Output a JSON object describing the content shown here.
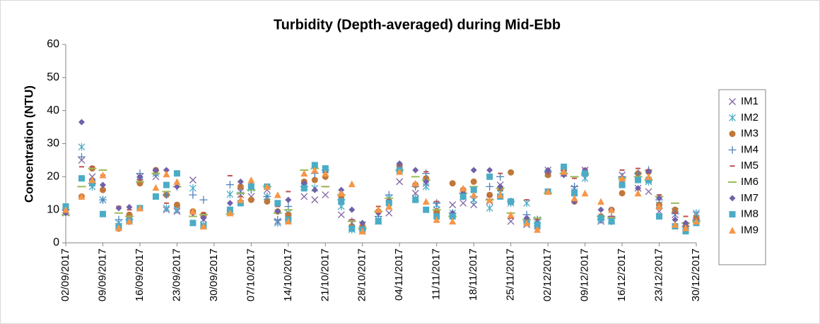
{
  "chart_data": {
    "type": "scatter",
    "title": "Turbidity (Depth-averaged) during Mid-Ebb",
    "y_label": "Concentration (NTU)",
    "x": [
      "02/09/2017",
      "05/09/2017",
      "07/09/2017",
      "09/09/2017",
      "12/09/2017",
      "14/09/2017",
      "16/09/2017",
      "19/09/2017",
      "21/09/2017",
      "23/09/2017",
      "26/09/2017",
      "28/09/2017",
      "03/10/2017",
      "05/10/2017",
      "07/10/2017",
      "10/10/2017",
      "12/10/2017",
      "14/10/2017",
      "17/10/2017",
      "19/10/2017",
      "21/10/2017",
      "24/10/2017",
      "26/10/2017",
      "28/10/2017",
      "31/10/2017",
      "02/11/2017",
      "04/11/2017",
      "07/11/2017",
      "09/11/2017",
      "11/11/2017",
      "14/11/2017",
      "16/11/2017",
      "18/11/2017",
      "21/11/2017",
      "23/11/2017",
      "25/11/2017",
      "28/11/2017",
      "30/11/2017",
      "02/12/2017",
      "05/12/2017",
      "07/12/2017",
      "09/12/2017",
      "12/12/2017",
      "14/12/2017",
      "16/12/2017",
      "19/12/2017",
      "21/12/2017",
      "23/12/2017",
      "26/12/2017",
      "28/12/2017",
      "30/12/2017"
    ],
    "xlim": [
      "02/09/2017",
      "30/12/2017"
    ],
    "xticks": [
      "02/09/2017",
      "09/09/2017",
      "16/09/2017",
      "23/09/2017",
      "30/09/2017",
      "07/10/2017",
      "14/10/2017",
      "21/10/2017",
      "28/10/2017",
      "04/11/2017",
      "11/11/2017",
      "18/11/2017",
      "25/11/2017",
      "02/12/2017",
      "09/12/2017",
      "16/12/2017",
      "23/12/2017",
      "30/12/2017"
    ],
    "ylim": [
      0,
      60
    ],
    "yticks": [
      0,
      10,
      20,
      30,
      40,
      50,
      60
    ],
    "grid": false,
    "legend": "right",
    "series": [
      {
        "name": "IM1",
        "color": "#8064a2",
        "marker": "x",
        "values": [
          9,
          25,
          20,
          13,
          5,
          7,
          20,
          20,
          10,
          9.5,
          19,
          7,
          9,
          15.5,
          14,
          16,
          6.5,
          8,
          14,
          13,
          14.5,
          8.5,
          6,
          3.5,
          6.5,
          9,
          18.5,
          15,
          18,
          10,
          11.5,
          12,
          11.5,
          12.5,
          17.5,
          6.5,
          5.5,
          5,
          22,
          21,
          16.5,
          22,
          6.5,
          7,
          20.5,
          16.5,
          15.5,
          9.5,
          8.5,
          5,
          8.5
        ]
      },
      {
        "name": "IM2",
        "color": "#4bacc6",
        "marker": "star",
        "values": [
          10,
          29,
          17,
          13,
          6,
          6.5,
          19,
          21,
          10.5,
          10,
          16.5,
          5.5,
          14.7,
          14.5,
          16.5,
          14,
          6,
          9,
          17,
          16.5,
          22,
          11,
          4,
          5.5,
          7,
          13.5,
          22.5,
          13.5,
          17,
          11.5,
          9,
          14,
          13,
          10.5,
          15,
          12,
          12,
          7,
          21,
          22,
          15.5,
          19.5,
          7,
          6.5,
          18,
          20,
          18.5,
          11.5,
          9.5,
          4,
          9
        ]
      },
      {
        "name": "IM3",
        "color": "#c0773a",
        "marker": "circle",
        "values": [
          10.5,
          14,
          22.5,
          16,
          4.3,
          8.5,
          18,
          22,
          14.5,
          11.5,
          9.5,
          8.5,
          9.5,
          17,
          13,
          12.5,
          9.5,
          8.5,
          18.5,
          19,
          20,
          14,
          5,
          5,
          9.5,
          12.5,
          23.5,
          17.5,
          19.5,
          9.5,
          18,
          16,
          18.5,
          14.5,
          16.5,
          21.3,
          7,
          5,
          20.5,
          22.5,
          12.5,
          21,
          8,
          10,
          15,
          21,
          21.5,
          11.5,
          10,
          5,
          7.5
        ]
      },
      {
        "name": "IM4",
        "color": "#4f81bd",
        "marker": "plus",
        "values": [
          10,
          26,
          18,
          13,
          7,
          7,
          21,
          21,
          14.5,
          17,
          14.5,
          13,
          17.6,
          15,
          16,
          14,
          7,
          11,
          17,
          21,
          22,
          13,
          6.5,
          4,
          8,
          14.5,
          22,
          17,
          21,
          12,
          9,
          15,
          14,
          17,
          20,
          12.5,
          8.5,
          7,
          21.5,
          21,
          17,
          20.5,
          7,
          8,
          20,
          21,
          22,
          13,
          9,
          5,
          7
        ]
      },
      {
        "name": "IM5",
        "color": "#c0504d",
        "marker": "dash",
        "values": [
          9,
          23,
          23,
          20.5,
          11,
          10,
          19,
          22,
          12,
          18,
          9,
          9,
          20.3,
          14,
          18.5,
          17.5,
          11,
          15.5,
          20.5,
          23,
          17,
          15,
          7,
          6,
          11,
          13,
          23,
          18,
          21.5,
          12.5,
          8.5,
          16,
          16,
          14,
          21,
          7.5,
          13,
          7,
          21,
          22,
          19.5,
          22.5,
          7.5,
          8,
          22,
          22.5,
          22,
          14.5,
          9,
          8,
          7
        ]
      },
      {
        "name": "IM6",
        "color": "#9bbb59",
        "marker": "longdash",
        "values": [
          8.5,
          17,
          22.5,
          22,
          9,
          8,
          18.5,
          21,
          15.5,
          17,
          8,
          8.5,
          8.7,
          15,
          16,
          17,
          9,
          10,
          22,
          22.5,
          17,
          14.5,
          6.5,
          4.5,
          9.5,
          13.5,
          22,
          20,
          19,
          10,
          8,
          15,
          17,
          13,
          16.5,
          9,
          7,
          7.5,
          15,
          21,
          20,
          21,
          8,
          7.5,
          19.5,
          20,
          19,
          14,
          12,
          6,
          6.5
        ]
      },
      {
        "name": "IM7",
        "color": "#7060a8",
        "marker": "diamond",
        "values": [
          9,
          36.5,
          19,
          17.5,
          10.5,
          10.8,
          20,
          22,
          22,
          17,
          9,
          7.5,
          12,
          18.5,
          17.5,
          17,
          9.5,
          13,
          18,
          16,
          21.5,
          16,
          10,
          6,
          9,
          12.5,
          24,
          22,
          18.5,
          8,
          9,
          15,
          22,
          22,
          17,
          12.5,
          7.5,
          6,
          22,
          20.5,
          12.5,
          22,
          10,
          10,
          19,
          16.5,
          21.5,
          13.5,
          7,
          6,
          6.5
        ]
      },
      {
        "name": "IM8",
        "color": "#4bacc6",
        "marker": "square",
        "values": [
          11,
          19.5,
          18,
          8.7,
          5,
          6.5,
          10.5,
          14,
          17.5,
          21,
          6,
          5,
          10,
          12,
          17,
          17,
          12,
          7,
          16.5,
          23.5,
          22.5,
          12.5,
          4.3,
          4,
          6.5,
          12,
          22,
          13,
          10,
          8,
          8,
          14,
          16,
          20,
          14,
          12.5,
          6,
          5.5,
          15.5,
          23,
          15,
          21,
          7.5,
          6.5,
          17.5,
          19,
          19,
          8,
          5,
          3.5,
          6
        ]
      },
      {
        "name": "IM9",
        "color": "#f79646",
        "marker": "triangle",
        "values": [
          10,
          14,
          19,
          20.5,
          4.5,
          6.5,
          10.5,
          16.7,
          20.8,
          18.5,
          9.5,
          5,
          9,
          13,
          19,
          17,
          14.5,
          6.5,
          21,
          22,
          21,
          15,
          17.8,
          3.5,
          10,
          11,
          21.5,
          18,
          12.5,
          7,
          6.5,
          16.5,
          14.5,
          13,
          14.5,
          8.5,
          6,
          4,
          15.5,
          21.5,
          13.5,
          15,
          12.5,
          10,
          19.5,
          15,
          20,
          11,
          5.5,
          4.5,
          6.5
        ]
      }
    ]
  }
}
